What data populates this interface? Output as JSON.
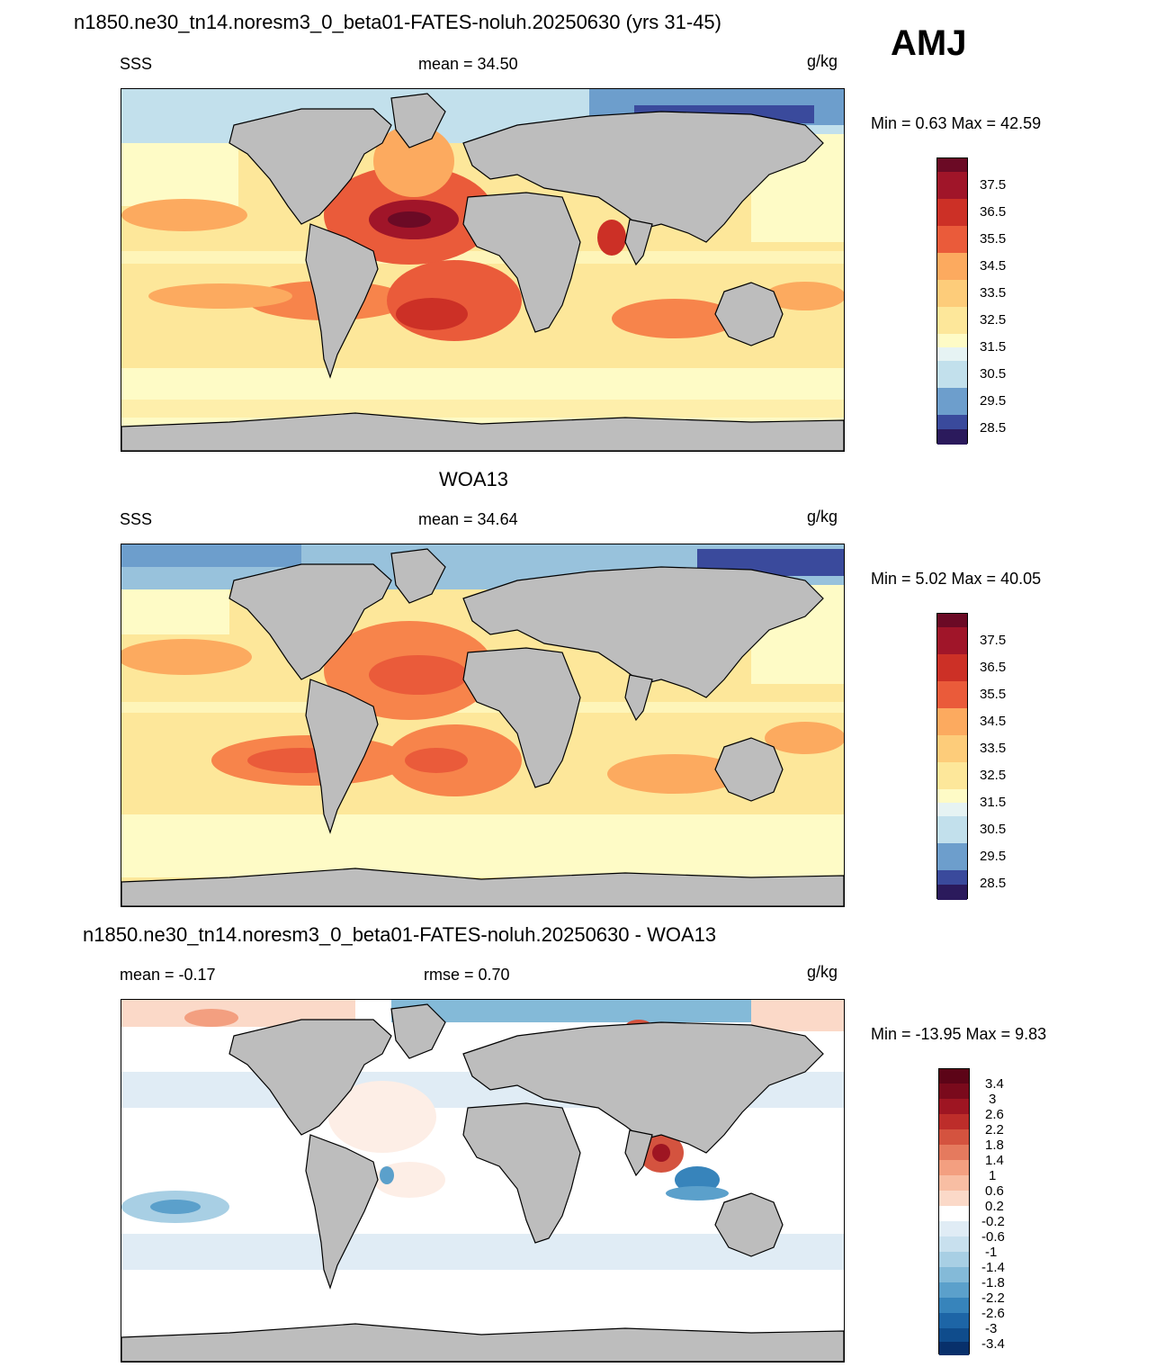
{
  "header": {
    "title": "n1850.ne30_tn14.noresm3_0_beta01-FATES-noluh.20250630 (yrs 31-45)",
    "season": "AMJ"
  },
  "colors": {
    "land": "#bdbdbd",
    "coast": "#000000",
    "sss_scale": [
      "#2b1a5c",
      "#3a4a9c",
      "#4a72b4",
      "#6d9ecc",
      "#98c2dc",
      "#c2e0ec",
      "#e6f3f3",
      "#fefbc6",
      "#fde79a",
      "#fdcc7a",
      "#fcaa5f",
      "#f7844b",
      "#ea5b3a",
      "#cc3026",
      "#a01529",
      "#6b0a25"
    ],
    "diff_scale": [
      "#08306b",
      "#0f4c8c",
      "#1d65a6",
      "#3784bb",
      "#5ba0cb",
      "#84bad8",
      "#a8cfe4",
      "#c8e0ee",
      "#e0ecf5",
      "#f1f6fa",
      "#ffffff",
      "#fdeee6",
      "#fbd9c8",
      "#f8bea3",
      "#f39f80",
      "#e57a5e",
      "#d4533f",
      "#bd2d2a",
      "#9e1522",
      "#7a0a1c",
      "#5c0417"
    ]
  },
  "panels": [
    {
      "id": "model",
      "subtitle": "",
      "left_label": "SSS",
      "center_label": "mean =  34.50",
      "units": "g/kg",
      "minmax": "Min =   0.63 Max =  42.59",
      "colorbar_ticks": [
        "37.5",
        "36.5",
        "35.5",
        "34.5",
        "33.5",
        "32.5",
        "31.5",
        "30.5",
        "29.5",
        "28.5"
      ]
    },
    {
      "id": "obs",
      "subtitle": "WOA13",
      "left_label": "SSS",
      "center_label": "mean =  34.64",
      "units": "g/kg",
      "minmax": "Min =   5.02 Max =  40.05",
      "colorbar_ticks": [
        "37.5",
        "36.5",
        "35.5",
        "34.5",
        "33.5",
        "32.5",
        "31.5",
        "30.5",
        "29.5",
        "28.5"
      ]
    },
    {
      "id": "diff",
      "subtitle": "n1850.ne30_tn14.noresm3_0_beta01-FATES-noluh.20250630 - WOA13",
      "left_label": "mean =  -0.17",
      "center_label": "rmse =   0.70",
      "units": "g/kg",
      "minmax": "Min = -13.95 Max =   9.83",
      "colorbar_ticks": [
        "3.4",
        "3",
        "2.6",
        "2.2",
        "1.8",
        "1.4",
        "1",
        "0.6",
        "0.2",
        "-0.2",
        "-0.6",
        "-1",
        "-1.4",
        "-1.8",
        "-2.2",
        "-2.6",
        "-3",
        "-3.4"
      ]
    }
  ]
}
